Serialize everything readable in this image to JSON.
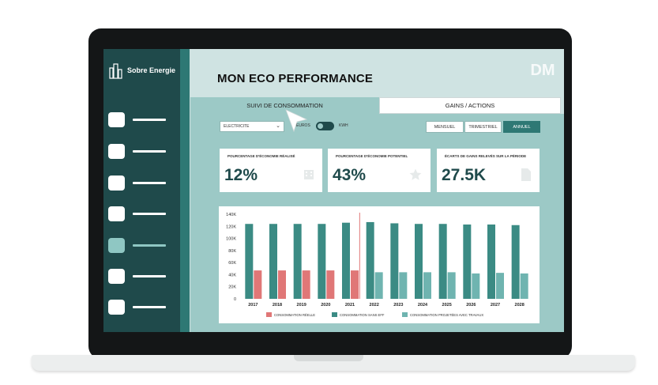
{
  "brand": {
    "name": "Sobre Energie"
  },
  "logo": {
    "text": "DM"
  },
  "header": {
    "title": "MON ECO PERFORMANCE"
  },
  "tabs": [
    {
      "label": "SUIVI DE CONSOMMATION",
      "active": true
    },
    {
      "label": "GAINS / ACTIONS",
      "active": false
    }
  ],
  "filters": {
    "energy_select": "ELECTRICITE",
    "toggle_left": "EUROS",
    "toggle_right": "KWH",
    "periods": [
      {
        "label": "MENSUEL",
        "active": false
      },
      {
        "label": "TRIMESTRIEL",
        "active": false
      },
      {
        "label": "ANNUEL",
        "active": true
      }
    ]
  },
  "kpis": [
    {
      "title": "POURCENTAGE D'ÉCONOMIE RÉALISÉ",
      "value": "12%",
      "icon": "building-icon"
    },
    {
      "title": "POURCENTAGE D'ÉCONOMIE POTENTIEL",
      "value": "43%",
      "icon": "star-icon"
    },
    {
      "title": "ÉCARTS DE GAINS RELEVÉS SUR LA PÉRIODE",
      "value": "27.5K",
      "icon": "document-icon"
    }
  ],
  "colors": {
    "sidebar": "#1f4a4b",
    "accent": "#2e7874",
    "background": "#9cc9c6",
    "real": "#e07777",
    "without_work": "#3b8b84",
    "projected": "#6fb4b0"
  },
  "chart_data": {
    "type": "bar",
    "categories": [
      "2017",
      "2018",
      "2019",
      "2020",
      "2021",
      "2022",
      "2023",
      "2024",
      "2025",
      "2026",
      "2027",
      "2028"
    ],
    "ylim": [
      0,
      140000
    ],
    "y_ticks": [
      "0",
      "20K",
      "40K",
      "60K",
      "80K",
      "100K",
      "120K",
      "140K"
    ],
    "divider_after": "2021",
    "series": [
      {
        "name": "CONSOMMATION RÉELLE",
        "color": "#e07777",
        "values": [
          47000,
          47000,
          47000,
          47000,
          47000,
          null,
          null,
          null,
          null,
          null,
          null,
          null
        ]
      },
      {
        "name": "CONSOMMATION SANS EFF",
        "color": "#3b8b84",
        "values": [
          124000,
          124000,
          124000,
          124000,
          126000,
          127000,
          125000,
          124000,
          124000,
          123000,
          123000,
          122000
        ]
      },
      {
        "name": "CONSOMMATION PROJETÉES AVEC TRAVAUX",
        "color": "#6fb4b0",
        "values": [
          null,
          null,
          null,
          null,
          null,
          44000,
          44000,
          44000,
          44000,
          42000,
          43000,
          42000
        ]
      }
    ]
  }
}
